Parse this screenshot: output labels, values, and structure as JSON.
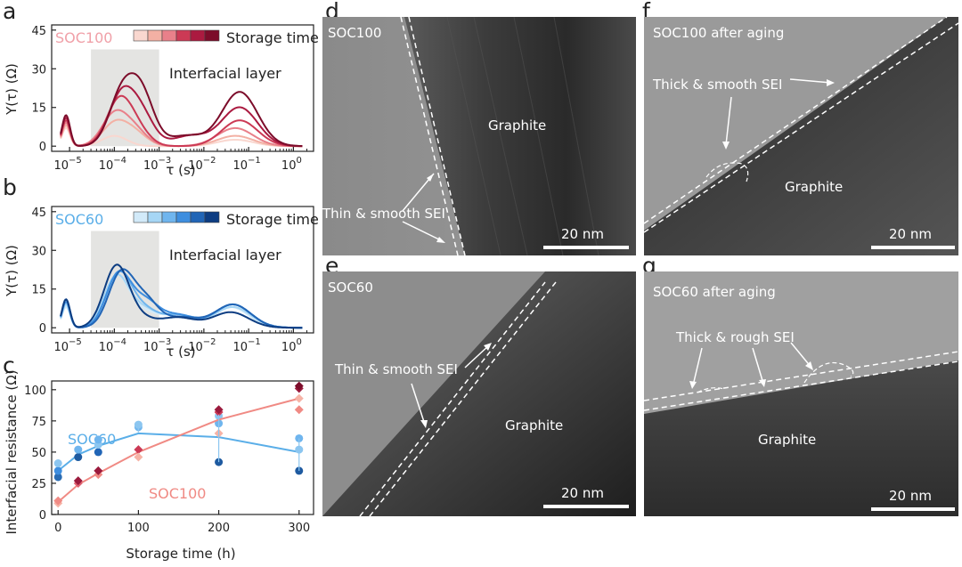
{
  "panels": {
    "a": "a",
    "b": "b",
    "c": "c",
    "d": "d",
    "e": "e",
    "f": "f",
    "g": "g"
  },
  "chart_data": [
    {
      "id": "a",
      "type": "line",
      "series_label": "SOC100",
      "legend_title": "Storage time",
      "annotation": "Interfacial layer",
      "xlabel": "τ (s)",
      "ylabel": "Y(τ) (Ω)",
      "xscale": "log",
      "xlim_log10": [
        -5.4,
        0.45
      ],
      "ylim": [
        -2,
        47
      ],
      "yticks": [
        "0",
        "15",
        "30",
        "45"
      ],
      "xticks": [
        "10^-5",
        "10^-4",
        "10^-3",
        "10^-2",
        "10^-1",
        "10^0"
      ],
      "shaded_region_tau": [
        "3e-5",
        "1e-3"
      ],
      "legend_colors": [
        "#f9d7cf",
        "#f3b0a4",
        "#e9808a",
        "#cc3a55",
        "#ab1a40",
        "#7c0c2a"
      ],
      "series": [
        {
          "color": "#f9d7cf",
          "peaks": [
            [
              -5.08,
              7
            ],
            [
              -4.0,
              4
            ],
            [
              -1.3,
              2.5
            ]
          ]
        },
        {
          "color": "#f3b0a4",
          "peaks": [
            [
              -5.08,
              8
            ],
            [
              -4.0,
              8.5
            ],
            [
              -3.55,
              5
            ],
            [
              -1.3,
              4
            ]
          ]
        },
        {
          "color": "#e9808a",
          "peaks": [
            [
              -5.08,
              9
            ],
            [
              -4.0,
              12
            ],
            [
              -3.55,
              6
            ],
            [
              -1.3,
              7
            ]
          ]
        },
        {
          "color": "#cc3a55",
          "peaks": [
            [
              -5.08,
              10
            ],
            [
              -3.9,
              17
            ],
            [
              -3.5,
              6
            ],
            [
              -1.2,
              10
            ]
          ]
        },
        {
          "color": "#ab1a40",
          "peaks": [
            [
              -5.08,
              11
            ],
            [
              -3.85,
              19
            ],
            [
              -3.4,
              12
            ],
            [
              -2.3,
              4
            ],
            [
              -1.2,
              15
            ]
          ]
        },
        {
          "color": "#7c0c2a",
          "peaks": [
            [
              -5.08,
              12
            ],
            [
              -3.85,
              19
            ],
            [
              -3.4,
              20
            ],
            [
              -2.4,
              4
            ],
            [
              -1.2,
              21
            ]
          ]
        }
      ]
    },
    {
      "id": "b",
      "type": "line",
      "series_label": "SOC60",
      "legend_title": "Storage time",
      "annotation": "Interfacial layer",
      "xlabel": "τ (s)",
      "ylabel": "Y(τ) (Ω)",
      "xscale": "log",
      "xlim_log10": [
        -5.4,
        0.45
      ],
      "ylim": [
        -2,
        47
      ],
      "yticks": [
        "0",
        "15",
        "30",
        "45"
      ],
      "xticks": [
        "10^-5",
        "10^-4",
        "10^-3",
        "10^-2",
        "10^-1",
        "10^0"
      ],
      "shaded_region_tau": [
        "3e-5",
        "1e-3"
      ],
      "legend_colors": [
        "#d2eaf9",
        "#a6d6f5",
        "#6fb5ee",
        "#3e8edf",
        "#2165b6",
        "#0d3d82"
      ],
      "series": [
        {
          "color": "#d2eaf9",
          "peaks": [
            [
              -5.08,
              8
            ],
            [
              -3.95,
              20
            ],
            [
              -3.35,
              5
            ],
            [
              -2.6,
              5
            ],
            [
              -1.4,
              8
            ]
          ]
        },
        {
          "color": "#a6d6f5",
          "peaks": [
            [
              -5.08,
              9
            ],
            [
              -3.95,
              20
            ],
            [
              -3.35,
              6
            ],
            [
              -2.6,
              5
            ],
            [
              -1.35,
              8
            ]
          ]
        },
        {
          "color": "#6fb5ee",
          "peaks": [
            [
              -5.08,
              10
            ],
            [
              -3.9,
              21
            ],
            [
              -3.35,
              6
            ],
            [
              -2.6,
              5
            ],
            [
              -1.35,
              9
            ]
          ]
        },
        {
          "color": "#3e8edf",
          "peaks": [
            [
              -5.08,
              10
            ],
            [
              -3.9,
              21
            ],
            [
              -3.3,
              9
            ],
            [
              -2.6,
              5
            ],
            [
              -1.35,
              9
            ]
          ]
        },
        {
          "color": "#2165b6",
          "peaks": [
            [
              -5.08,
              11
            ],
            [
              -3.85,
              21
            ],
            [
              -3.3,
              10
            ],
            [
              -2.5,
              4
            ],
            [
              -1.35,
              9
            ]
          ]
        },
        {
          "color": "#0d3d82",
          "peaks": [
            [
              -5.08,
              11
            ],
            [
              -3.95,
              24
            ],
            [
              -3.4,
              3
            ],
            [
              -2.6,
              4
            ],
            [
              -1.4,
              6
            ]
          ]
        }
      ]
    },
    {
      "id": "c",
      "type": "scatter",
      "xlabel": "Storage time (h)",
      "ylabel": "Interfacial resistance (Ω)",
      "xlim": [
        -8,
        318
      ],
      "ylim": [
        0,
        107
      ],
      "xticks": [
        "0",
        "100",
        "200",
        "300"
      ],
      "yticks": [
        "0",
        "25",
        "50",
        "75",
        "100"
      ],
      "series": [
        {
          "name": "SOC60",
          "color": "#5aaee8",
          "line_x": [
            0,
            25,
            50,
            100,
            200,
            300
          ],
          "line_y": [
            35,
            48,
            55,
            65,
            62,
            50
          ],
          "points": [
            [
              0,
              30,
              "#2a6cb3"
            ],
            [
              0,
              35,
              "#3e8edf"
            ],
            [
              0,
              41,
              "#8cc6f0"
            ],
            [
              25,
              46,
              "#1e5aa0"
            ],
            [
              25,
              52,
              "#6fb5ee"
            ],
            [
              50,
              50,
              "#2165b6"
            ],
            [
              50,
              56,
              "#8cc6f0"
            ],
            [
              50,
              60,
              "#6fb5ee"
            ],
            [
              100,
              70,
              "#6fb5ee"
            ],
            [
              100,
              72,
              "#8cc6f0"
            ],
            [
              200,
              42,
              "#1e5aa0"
            ],
            [
              200,
              73,
              "#6fb5ee"
            ],
            [
              200,
              79,
              "#8cc6f0"
            ],
            [
              300,
              35,
              "#1e5aa0"
            ],
            [
              300,
              52,
              "#8cc6f0"
            ],
            [
              300,
              61,
              "#6fb5ee"
            ]
          ]
        },
        {
          "name": "SOC100",
          "color": "#f08a84",
          "line_x": [
            0,
            25,
            50,
            100,
            200,
            300
          ],
          "line_y": [
            10,
            24,
            33,
            50,
            76,
            93
          ],
          "points": [
            [
              0,
              9,
              "#f6b3a6"
            ],
            [
              0,
              11,
              "#f08a84"
            ],
            [
              25,
              25,
              "#e06070"
            ],
            [
              25,
              27,
              "#9b1a3d"
            ],
            [
              50,
              32,
              "#f08a84"
            ],
            [
              50,
              35,
              "#9b1a3d"
            ],
            [
              100,
              52,
              "#cc3a55"
            ],
            [
              100,
              46,
              "#f6b3a6"
            ],
            [
              200,
              65,
              "#f6b3a6"
            ],
            [
              200,
              82,
              "#cc3a55"
            ],
            [
              200,
              84,
              "#9b1a3d"
            ],
            [
              300,
              84,
              "#f08a84"
            ],
            [
              300,
              93,
              "#f6b3a6"
            ],
            [
              300,
              101,
              "#9b1a3d"
            ],
            [
              300,
              103,
              "#7c0c2a"
            ]
          ]
        }
      ]
    }
  ],
  "micrographs": {
    "d": {
      "label": "SOC100",
      "region": "Graphite",
      "annotation": "Thin & smooth SEI",
      "scale": "20 nm"
    },
    "e": {
      "label": "SOC60",
      "region": "Graphite",
      "annotation": "Thin & smooth SEI",
      "scale": "20 nm"
    },
    "f": {
      "label": "SOC100 after aging",
      "region": "Graphite",
      "annotation": "Thick & smooth SEI",
      "scale": "20 nm"
    },
    "g": {
      "label": "SOC60 after aging",
      "region": "Graphite",
      "annotation": "Thick & rough SEI",
      "scale": "20 nm"
    }
  }
}
